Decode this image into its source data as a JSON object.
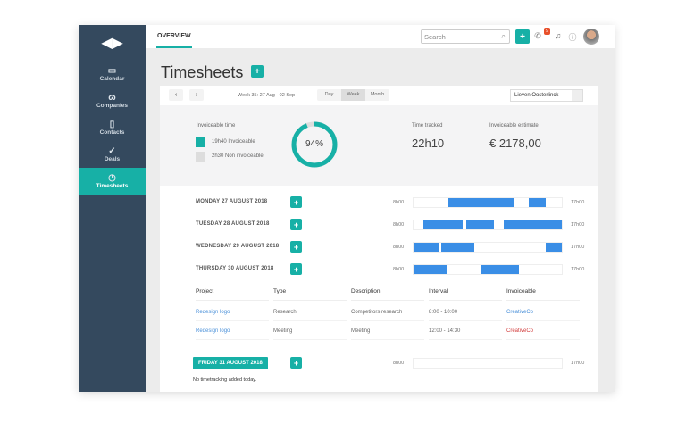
{
  "sidebar": {
    "items": [
      {
        "label": "Calendar",
        "icon": "calendar-icon"
      },
      {
        "label": "Companies",
        "icon": "companies-icon"
      },
      {
        "label": "Contacts",
        "icon": "contacts-icon"
      },
      {
        "label": "Deals",
        "icon": "deals-icon"
      },
      {
        "label": "Timesheets",
        "icon": "timer-icon",
        "active": true
      }
    ]
  },
  "topbar": {
    "tab": "OVERVIEW",
    "search_placeholder": "Search",
    "notification_count": "9"
  },
  "page": {
    "title": "Timesheets"
  },
  "toolbar": {
    "week": "Week 35: 27 Aug - 02 Sep",
    "views": [
      "Day",
      "Week",
      "Month"
    ],
    "active_view": "Week",
    "user": "Lieven Oosterlinck"
  },
  "summary": {
    "invoiceable_label": "Invoiceable time",
    "invoiceable": "19h40 Invoiceable",
    "non_invoiceable": "2h30 Non invoiceable",
    "percent_label": "94%",
    "percent": 94,
    "time_tracked_label": "Time tracked",
    "time_tracked": "22h10",
    "estimate_label": "Invoiceable estimate",
    "estimate": "€ 2178,00",
    "colors": {
      "invoiceable": "#17b0a6",
      "non_invoiceable": "#dddddd"
    }
  },
  "timeline": {
    "start_label": "8h00",
    "end_label": "17h00",
    "start_hour": 8,
    "end_hour": 17
  },
  "days": [
    {
      "label": "MONDAY 27 AUGUST 2018",
      "blocks": [
        [
          10.1,
          14.1
        ],
        [
          15.0,
          16.0
        ]
      ]
    },
    {
      "label": "TUESDAY 28 AUGUST 2018",
      "blocks": [
        [
          8.6,
          11.0
        ],
        [
          11.2,
          12.9
        ],
        [
          13.5,
          17.0
        ]
      ]
    },
    {
      "label": "WEDNESDAY 29 AUGUST 2018",
      "blocks": [
        [
          8.0,
          9.5
        ],
        [
          9.7,
          11.7
        ],
        [
          16.0,
          17.0
        ]
      ]
    },
    {
      "label": "THURSDAY 30 AUGUST 2018",
      "blocks": [
        [
          8.0,
          10.0
        ],
        [
          12.1,
          14.4
        ]
      ]
    }
  ],
  "table": {
    "headers": [
      "Project",
      "Type",
      "Description",
      "Interval",
      "Invoiceable"
    ],
    "rows": [
      [
        "Redesign logo",
        "Research",
        "Competitors research",
        "8:00 - 10:00",
        "CreativeCo"
      ],
      [
        "Redesign logo",
        "Meeting",
        "Meeting",
        "12:00 - 14:30",
        "CreativeCo"
      ]
    ]
  },
  "friday": {
    "label": "FRIDAY 31 AUGUST 2018",
    "empty": "No timetracking added today."
  }
}
